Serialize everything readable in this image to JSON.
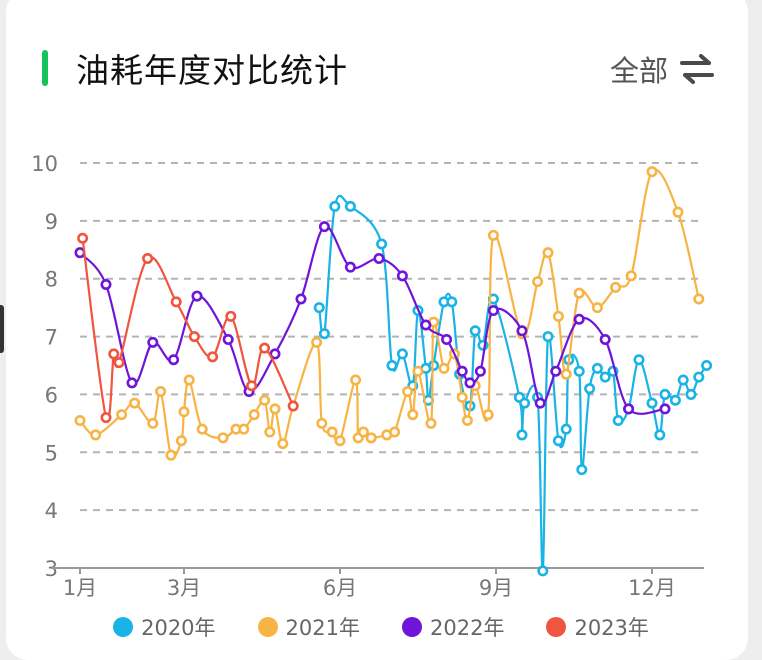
{
  "header": {
    "title": "油耗年度对比统计",
    "filter_label": "全部",
    "filter_icon": "swap-arrows-icon",
    "accent_color": "#16c25a"
  },
  "chart_data": {
    "type": "line",
    "title": "油耗年度对比统计",
    "xlabel": "",
    "ylabel": "",
    "xlim": [
      1,
      13
    ],
    "ylim": [
      3,
      10
    ],
    "x_ticks": [
      {
        "x": 1,
        "label": "1月"
      },
      {
        "x": 3,
        "label": "3月"
      },
      {
        "x": 6,
        "label": "6月"
      },
      {
        "x": 9,
        "label": "9月"
      },
      {
        "x": 12,
        "label": "12月"
      }
    ],
    "y_ticks": [
      3,
      4,
      5,
      6,
      7,
      8,
      9,
      10
    ],
    "grid": "horizontal dashed",
    "legend_position": "bottom",
    "series": [
      {
        "name": "2020年",
        "color": "#1ab3e6",
        "points": [
          [
            5.6,
            7.5
          ],
          [
            5.7,
            7.05
          ],
          [
            5.9,
            9.25
          ],
          [
            6.2,
            9.25
          ],
          [
            6.8,
            8.6
          ],
          [
            7.0,
            6.5
          ],
          [
            7.2,
            6.7
          ],
          [
            7.4,
            6.15
          ],
          [
            7.5,
            7.45
          ],
          [
            7.65,
            6.45
          ],
          [
            7.7,
            5.9
          ],
          [
            7.8,
            6.5
          ],
          [
            8.0,
            7.6
          ],
          [
            8.15,
            7.6
          ],
          [
            8.3,
            6.35
          ],
          [
            8.5,
            5.8
          ],
          [
            8.6,
            7.1
          ],
          [
            8.75,
            6.85
          ],
          [
            8.95,
            7.65
          ],
          [
            9.45,
            5.95
          ],
          [
            9.5,
            5.3
          ],
          [
            9.55,
            5.85
          ],
          [
            9.8,
            5.95
          ],
          [
            9.9,
            2.95
          ],
          [
            10.0,
            7.0
          ],
          [
            10.2,
            5.2
          ],
          [
            10.35,
            5.4
          ],
          [
            10.4,
            6.6
          ],
          [
            10.6,
            6.4
          ],
          [
            10.65,
            4.7
          ],
          [
            10.8,
            6.1
          ],
          [
            10.95,
            6.45
          ],
          [
            11.1,
            6.3
          ],
          [
            11.25,
            6.4
          ],
          [
            11.35,
            5.55
          ],
          [
            11.55,
            5.75
          ],
          [
            11.75,
            6.6
          ],
          [
            12.0,
            5.85
          ],
          [
            12.15,
            5.3
          ],
          [
            12.25,
            6.0
          ],
          [
            12.45,
            5.9
          ],
          [
            12.6,
            6.25
          ],
          [
            12.75,
            6.0
          ],
          [
            12.9,
            6.3
          ],
          [
            13.05,
            6.5
          ]
        ]
      },
      {
        "name": "2021年",
        "color": "#f7b445",
        "points": [
          [
            1.0,
            5.55
          ],
          [
            1.3,
            5.3
          ],
          [
            1.8,
            5.65
          ],
          [
            2.05,
            5.85
          ],
          [
            2.4,
            5.5
          ],
          [
            2.55,
            6.05
          ],
          [
            2.75,
            4.95
          ],
          [
            2.95,
            5.2
          ],
          [
            3.0,
            5.7
          ],
          [
            3.1,
            6.25
          ],
          [
            3.35,
            5.4
          ],
          [
            3.75,
            5.25
          ],
          [
            4.0,
            5.4
          ],
          [
            4.15,
            5.4
          ],
          [
            4.35,
            5.65
          ],
          [
            4.55,
            5.9
          ],
          [
            4.65,
            5.35
          ],
          [
            4.75,
            5.75
          ],
          [
            4.9,
            5.15
          ],
          [
            5.1,
            5.8
          ],
          [
            5.55,
            6.9
          ],
          [
            5.65,
            5.5
          ],
          [
            5.85,
            5.35
          ],
          [
            6.0,
            5.2
          ],
          [
            6.3,
            6.25
          ],
          [
            6.35,
            5.25
          ],
          [
            6.45,
            5.35
          ],
          [
            6.6,
            5.25
          ],
          [
            6.9,
            5.3
          ],
          [
            7.05,
            5.35
          ],
          [
            7.3,
            6.05
          ],
          [
            7.4,
            5.65
          ],
          [
            7.5,
            6.4
          ],
          [
            7.75,
            5.5
          ],
          [
            7.8,
            7.25
          ],
          [
            8.0,
            6.45
          ],
          [
            8.2,
            6.7
          ],
          [
            8.35,
            5.95
          ],
          [
            8.45,
            5.55
          ],
          [
            8.6,
            6.15
          ],
          [
            8.85,
            5.65
          ],
          [
            8.95,
            8.75
          ],
          [
            9.5,
            7.05
          ],
          [
            9.8,
            7.95
          ],
          [
            10.0,
            8.45
          ],
          [
            10.2,
            7.35
          ],
          [
            10.35,
            6.35
          ],
          [
            10.6,
            7.75
          ],
          [
            10.95,
            7.5
          ],
          [
            11.3,
            7.85
          ],
          [
            11.6,
            8.05
          ],
          [
            12.0,
            9.85
          ],
          [
            12.5,
            9.15
          ],
          [
            12.9,
            7.65
          ]
        ]
      },
      {
        "name": "2022年",
        "color": "#6f14d9",
        "points": [
          [
            1.0,
            8.45
          ],
          [
            1.5,
            7.9
          ],
          [
            2.0,
            6.2
          ],
          [
            2.4,
            6.9
          ],
          [
            2.8,
            6.6
          ],
          [
            3.25,
            7.7
          ],
          [
            3.85,
            6.95
          ],
          [
            4.25,
            6.05
          ],
          [
            4.75,
            6.7
          ],
          [
            5.25,
            7.65
          ],
          [
            5.7,
            8.9
          ],
          [
            6.2,
            8.2
          ],
          [
            6.75,
            8.35
          ],
          [
            7.2,
            8.05
          ],
          [
            7.65,
            7.2
          ],
          [
            8.05,
            6.95
          ],
          [
            8.35,
            6.4
          ],
          [
            8.5,
            6.2
          ],
          [
            8.7,
            6.4
          ],
          [
            8.95,
            7.45
          ],
          [
            9.5,
            7.1
          ],
          [
            9.85,
            5.85
          ],
          [
            10.15,
            6.4
          ],
          [
            10.6,
            7.3
          ],
          [
            11.1,
            6.95
          ],
          [
            11.55,
            5.75
          ],
          [
            12.25,
            5.75
          ]
        ]
      },
      {
        "name": "2023年",
        "color": "#f0553e",
        "points": [
          [
            1.05,
            8.7
          ],
          [
            1.5,
            5.6
          ],
          [
            1.65,
            6.7
          ],
          [
            1.75,
            6.55
          ],
          [
            2.3,
            8.35
          ],
          [
            2.85,
            7.6
          ],
          [
            3.2,
            7.0
          ],
          [
            3.55,
            6.65
          ],
          [
            3.9,
            7.35
          ],
          [
            4.3,
            6.15
          ],
          [
            4.55,
            6.8
          ],
          [
            5.1,
            5.8
          ]
        ]
      }
    ]
  }
}
